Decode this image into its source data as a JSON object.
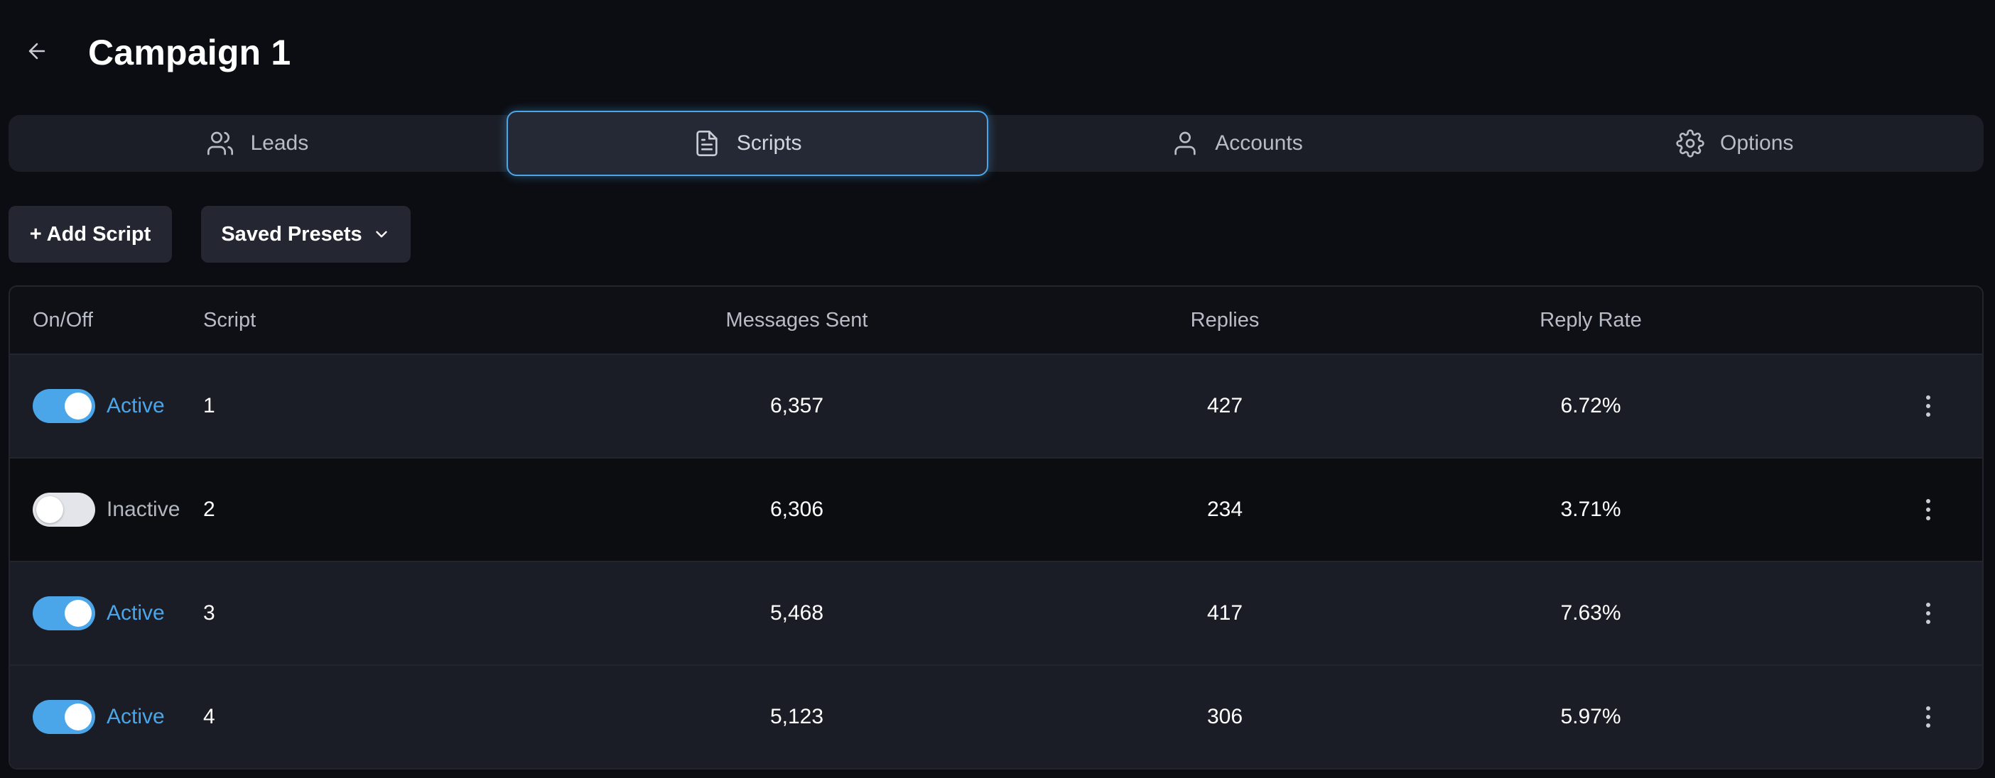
{
  "header": {
    "title": "Campaign 1",
    "back_icon": "arrow-left-icon"
  },
  "tabs": [
    {
      "label": "Leads",
      "icon": "users-icon",
      "active": false
    },
    {
      "label": "Scripts",
      "icon": "document-icon",
      "active": true
    },
    {
      "label": "Accounts",
      "icon": "user-icon",
      "active": false
    },
    {
      "label": "Options",
      "icon": "gear-icon",
      "active": false
    }
  ],
  "toolbar": {
    "add_script_label": "+ Add Script",
    "saved_presets_label": "Saved Presets",
    "saved_presets_icon": "chevron-down-icon"
  },
  "table": {
    "headers": {
      "onoff": "On/Off",
      "script": "Script",
      "sent": "Messages Sent",
      "replies": "Replies",
      "rate": "Reply Rate"
    },
    "rows": [
      {
        "active": true,
        "status": "Active",
        "script": "1",
        "sent": "6,357",
        "replies": "427",
        "rate": "6.72%"
      },
      {
        "active": false,
        "status": "Inactive",
        "script": "2",
        "sent": "6,306",
        "replies": "234",
        "rate": "3.71%"
      },
      {
        "active": true,
        "status": "Active",
        "script": "3",
        "sent": "5,468",
        "replies": "417",
        "rate": "7.63%"
      },
      {
        "active": true,
        "status": "Active",
        "script": "4",
        "sent": "5,123",
        "replies": "306",
        "rate": "5.97%"
      }
    ]
  },
  "colors": {
    "accent": "#4aa6e8",
    "background": "#0c0d12",
    "surface": "#1b1e27",
    "text_muted": "#b8bcc6"
  }
}
